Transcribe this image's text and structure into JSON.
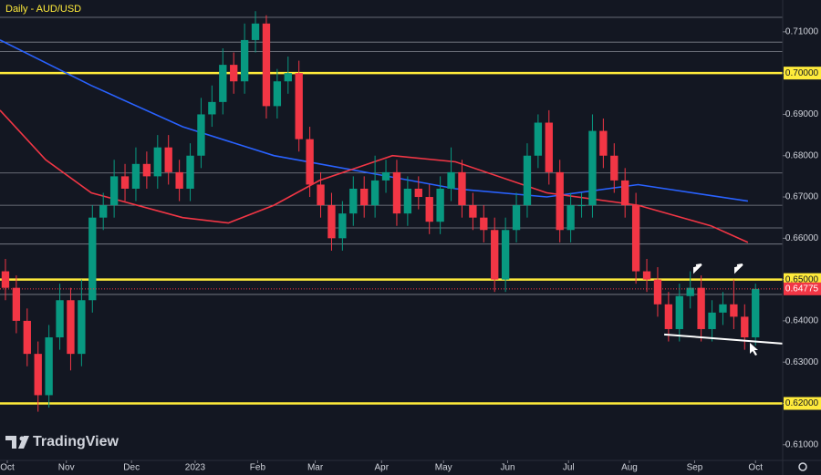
{
  "chart_data": {
    "type": "candlestick",
    "title": "Daily - AUD/USD",
    "watermark": "TradingView",
    "up_color": "#089981",
    "down_color": "#f23645",
    "xlim": [
      0,
      72
    ],
    "xticks": [
      {
        "value": 0.67,
        "label": "Oct"
      },
      {
        "value": 6.1,
        "label": "Nov"
      },
      {
        "value": 12.1,
        "label": "Dec"
      },
      {
        "value": 17.95,
        "label": "2023"
      },
      {
        "value": 23.7,
        "label": "Feb"
      },
      {
        "value": 29.0,
        "label": "Mar"
      },
      {
        "value": 35.1,
        "label": "Apr"
      },
      {
        "value": 40.8,
        "label": "May"
      },
      {
        "value": 46.7,
        "label": "Jun"
      },
      {
        "value": 52.3,
        "label": "Jul"
      },
      {
        "value": 57.9,
        "label": "Aug"
      },
      {
        "value": 63.9,
        "label": "Sep"
      },
      {
        "value": 69.5,
        "label": "Oct"
      }
    ],
    "ylim": [
      0.6062,
      0.7177
    ],
    "yticks": [
      {
        "value": 0.71,
        "label": "0.71000"
      },
      {
        "value": 0.7,
        "label": "0.70000"
      },
      {
        "value": 0.69,
        "label": "0.69000"
      },
      {
        "value": 0.68,
        "label": "0.68000"
      },
      {
        "value": 0.67,
        "label": "0.67000"
      },
      {
        "value": 0.66,
        "label": "0.66000"
      },
      {
        "value": 0.65,
        "label": "0.65000"
      },
      {
        "value": 0.64,
        "label": "0.64000"
      },
      {
        "value": 0.63,
        "label": "0.63000"
      },
      {
        "value": 0.62,
        "label": "0.62000"
      },
      {
        "value": 0.61,
        "label": "0.61000"
      }
    ],
    "key_levels": [
      0.7,
      0.65,
      0.62
    ],
    "key_level_color": "#ffeb3b",
    "minor_levels": [
      0.7135,
      0.7075,
      0.7052,
      0.6758,
      0.668,
      0.6625,
      0.6586,
      0.6464
    ],
    "last_price": 0.64775,
    "open": [
      0.652,
      0.648,
      0.64,
      0.632,
      0.622,
      0.636,
      0.645,
      0.632,
      0.645,
      0.665,
      0.668,
      0.675,
      0.672,
      0.678,
      0.675,
      0.682,
      0.676,
      0.672,
      0.68,
      0.69,
      0.693,
      0.702,
      0.698,
      0.708,
      0.712,
      0.692,
      0.698,
      0.7,
      0.684,
      0.673,
      0.668,
      0.66,
      0.666,
      0.672,
      0.668,
      0.674,
      0.676,
      0.666,
      0.672,
      0.67,
      0.664,
      0.672,
      0.676,
      0.668,
      0.665,
      0.662,
      0.65,
      0.662,
      0.668,
      0.68,
      0.688,
      0.676,
      0.662,
      0.668,
      0.668,
      0.686,
      0.68,
      0.674,
      0.668,
      0.652,
      0.65,
      0.644,
      0.638,
      0.646,
      0.648,
      0.638,
      0.642,
      0.644,
      0.641,
      0.636
    ],
    "high": [
      0.655,
      0.651,
      0.643,
      0.635,
      0.639,
      0.649,
      0.648,
      0.65,
      0.668,
      0.671,
      0.679,
      0.678,
      0.682,
      0.681,
      0.685,
      0.685,
      0.679,
      0.683,
      0.694,
      0.697,
      0.706,
      0.705,
      0.712,
      0.715,
      0.714,
      0.701,
      0.704,
      0.703,
      0.687,
      0.676,
      0.671,
      0.669,
      0.675,
      0.675,
      0.68,
      0.679,
      0.679,
      0.675,
      0.675,
      0.673,
      0.675,
      0.682,
      0.679,
      0.671,
      0.668,
      0.665,
      0.665,
      0.671,
      0.683,
      0.69,
      0.691,
      0.679,
      0.671,
      0.671,
      0.69,
      0.689,
      0.683,
      0.677,
      0.671,
      0.655,
      0.653,
      0.647,
      0.649,
      0.652,
      0.651,
      0.645,
      0.647,
      0.65,
      0.644,
      0.649
    ],
    "low": [
      0.645,
      0.637,
      0.629,
      0.618,
      0.619,
      0.633,
      0.628,
      0.629,
      0.642,
      0.662,
      0.665,
      0.669,
      0.669,
      0.672,
      0.672,
      0.673,
      0.669,
      0.669,
      0.677,
      0.687,
      0.69,
      0.695,
      0.695,
      0.705,
      0.689,
      0.689,
      0.695,
      0.681,
      0.67,
      0.665,
      0.657,
      0.657,
      0.663,
      0.665,
      0.665,
      0.671,
      0.663,
      0.663,
      0.667,
      0.661,
      0.661,
      0.669,
      0.665,
      0.662,
      0.659,
      0.647,
      0.647,
      0.659,
      0.665,
      0.677,
      0.673,
      0.659,
      0.659,
      0.665,
      0.665,
      0.677,
      0.671,
      0.665,
      0.649,
      0.647,
      0.641,
      0.635,
      0.635,
      0.643,
      0.635,
      0.635,
      0.639,
      0.638,
      0.633,
      0.634
    ],
    "close": [
      0.648,
      0.64,
      0.632,
      0.622,
      0.636,
      0.645,
      0.632,
      0.645,
      0.665,
      0.668,
      0.675,
      0.672,
      0.678,
      0.675,
      0.682,
      0.676,
      0.672,
      0.68,
      0.69,
      0.693,
      0.702,
      0.698,
      0.708,
      0.712,
      0.692,
      0.698,
      0.7,
      0.684,
      0.673,
      0.668,
      0.66,
      0.666,
      0.672,
      0.668,
      0.674,
      0.676,
      0.666,
      0.672,
      0.67,
      0.664,
      0.672,
      0.676,
      0.668,
      0.665,
      0.662,
      0.65,
      0.662,
      0.668,
      0.68,
      0.688,
      0.676,
      0.662,
      0.668,
      0.668,
      0.686,
      0.68,
      0.674,
      0.668,
      0.652,
      0.65,
      0.644,
      0.638,
      0.646,
      0.648,
      0.638,
      0.642,
      0.644,
      0.641,
      0.636,
      0.64775
    ],
    "moving_averages": [
      {
        "color": "#2962ff",
        "x": [
          0,
          8.4,
          16.8,
          25.2,
          33.6,
          41.9,
          50.3,
          58.7,
          68.8
        ],
        "values": [
          0.708,
          0.697,
          0.687,
          0.68,
          0.676,
          0.672,
          0.67,
          0.673,
          0.669
        ]
      },
      {
        "color": "#f23645",
        "x": [
          0,
          4.2,
          8.4,
          16.8,
          21,
          25.2,
          29.4,
          36.1,
          41.9,
          50.3,
          58.7,
          65.4,
          68.8
        ],
        "values": [
          0.691,
          0.679,
          0.671,
          0.665,
          0.6637,
          0.668,
          0.674,
          0.68,
          0.6785,
          0.671,
          0.668,
          0.663,
          0.659
        ]
      }
    ],
    "trendline": {
      "x": [
        61.1,
        72
      ],
      "values": [
        0.6367,
        0.6345
      ]
    }
  }
}
